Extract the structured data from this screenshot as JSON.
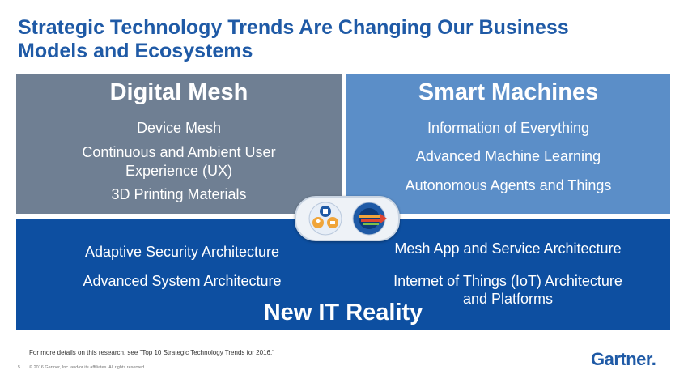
{
  "title": {
    "line1": "Strategic Technology Trends Are Changing Our Business",
    "line2": "Models and Ecosystems"
  },
  "digital_mesh": {
    "heading": "Digital Mesh",
    "items": [
      "Device Mesh",
      "Continuous and Ambient User",
      "Experience (UX)",
      "3D Printing Materials"
    ]
  },
  "smart_machines": {
    "heading": "Smart Machines",
    "items": [
      "Information of Everything",
      "Advanced Machine Learning",
      "Autonomous Agents and Things"
    ]
  },
  "new_it_reality": {
    "heading": "New IT Reality",
    "left_items": [
      "Adaptive Security Architecture",
      "Advanced System Architecture"
    ],
    "right_items": [
      "Mesh App and Service Architecture",
      "Internet of Things (IoT) Architecture",
      "and Platforms"
    ]
  },
  "footer": {
    "note": "For more details on this research, see \"Top 10 Strategic Technology Trends for 2016.\"",
    "page_number": "5",
    "copyright": "© 2016 Gartner, Inc. and/or its affiliates. All rights reserved.",
    "logo": "Gartner."
  },
  "colors": {
    "title": "#1f5aa6",
    "digital_mesh_bg": "#6f7f93",
    "smart_machines_bg": "#5b8ec8",
    "new_it_bg": "#0d4fa1"
  }
}
